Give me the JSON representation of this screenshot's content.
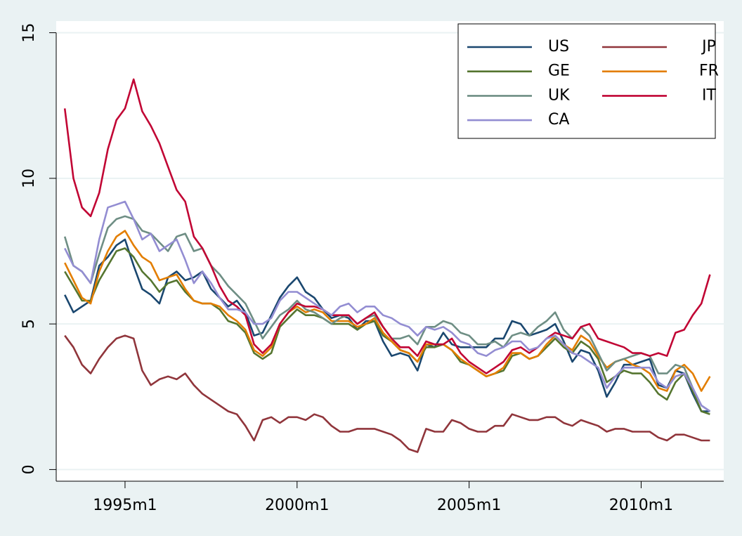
{
  "chart_data": {
    "type": "line",
    "x": [
      1993.25,
      1993.5,
      1993.75,
      1994,
      1994.25,
      1994.5,
      1994.75,
      1995,
      1995.25,
      1995.5,
      1995.75,
      1996,
      1996.25,
      1996.5,
      1996.75,
      1997,
      1997.25,
      1997.5,
      1997.75,
      1998,
      1998.25,
      1998.5,
      1998.75,
      1999,
      1999.25,
      1999.5,
      1999.75,
      2000,
      2000.25,
      2000.5,
      2000.75,
      2001,
      2001.25,
      2001.5,
      2001.75,
      2002,
      2002.25,
      2002.5,
      2002.75,
      2003,
      2003.25,
      2003.5,
      2003.75,
      2004,
      2004.25,
      2004.5,
      2004.75,
      2005,
      2005.25,
      2005.5,
      2005.75,
      2006,
      2006.25,
      2006.5,
      2006.75,
      2007,
      2007.25,
      2007.5,
      2007.75,
      2008,
      2008.25,
      2008.5,
      2008.75,
      2009,
      2009.25,
      2009.5,
      2009.75,
      2010,
      2010.25,
      2010.5,
      2010.75,
      2011,
      2011.25,
      2011.5,
      2011.75,
      2012
    ],
    "xlim": [
      1993,
      2012.4
    ],
    "xticks": [
      {
        "value": 1995,
        "label": "1995m1"
      },
      {
        "value": 2000,
        "label": "2000m1"
      },
      {
        "value": 2005,
        "label": "2005m1"
      },
      {
        "value": 2010,
        "label": "2010m1"
      }
    ],
    "ylim": [
      -0.4,
      15.4
    ],
    "yticks": [
      0,
      5,
      10,
      15
    ],
    "grid": true,
    "legend": "top-right",
    "series": [
      {
        "name": "US",
        "color": "#1a476f",
        "values": [
          6.0,
          5.4,
          5.6,
          5.8,
          7.0,
          7.3,
          7.7,
          7.9,
          7.0,
          6.2,
          6.0,
          5.7,
          6.6,
          6.8,
          6.5,
          6.6,
          6.8,
          6.2,
          5.9,
          5.6,
          5.8,
          5.4,
          4.6,
          4.7,
          5.3,
          5.9,
          6.3,
          6.6,
          6.1,
          5.9,
          5.5,
          5.2,
          5.3,
          5.2,
          4.8,
          5.1,
          5.1,
          4.4,
          3.9,
          4.0,
          3.9,
          3.4,
          4.3,
          4.2,
          4.7,
          4.3,
          4.2,
          4.2,
          4.2,
          4.2,
          4.5,
          4.5,
          5.1,
          5.0,
          4.6,
          4.7,
          4.8,
          5.0,
          4.4,
          3.7,
          4.1,
          4.0,
          3.4,
          2.5,
          3.0,
          3.6,
          3.6,
          3.7,
          3.8,
          2.9,
          2.8,
          3.4,
          3.3,
          2.6,
          2.0,
          2.0
        ]
      },
      {
        "name": "JP",
        "color": "#90353b",
        "values": [
          4.6,
          4.2,
          3.6,
          3.3,
          3.8,
          4.2,
          4.5,
          4.6,
          4.5,
          3.4,
          2.9,
          3.1,
          3.2,
          3.1,
          3.3,
          2.9,
          2.6,
          2.4,
          2.2,
          2.0,
          1.9,
          1.5,
          1.0,
          1.7,
          1.8,
          1.6,
          1.8,
          1.8,
          1.7,
          1.9,
          1.8,
          1.5,
          1.3,
          1.3,
          1.4,
          1.4,
          1.4,
          1.3,
          1.2,
          1.0,
          0.7,
          0.6,
          1.4,
          1.3,
          1.3,
          1.7,
          1.6,
          1.4,
          1.3,
          1.3,
          1.5,
          1.5,
          1.9,
          1.8,
          1.7,
          1.7,
          1.8,
          1.8,
          1.6,
          1.5,
          1.7,
          1.6,
          1.5,
          1.3,
          1.4,
          1.4,
          1.3,
          1.3,
          1.3,
          1.1,
          1.0,
          1.2,
          1.2,
          1.1,
          1.0,
          1.0
        ]
      },
      {
        "name": "GE",
        "color": "#55752f",
        "values": [
          6.8,
          6.3,
          5.8,
          5.8,
          6.5,
          7.0,
          7.5,
          7.6,
          7.3,
          6.8,
          6.5,
          6.1,
          6.4,
          6.5,
          6.1,
          5.8,
          5.7,
          5.7,
          5.5,
          5.1,
          5.0,
          4.7,
          4.0,
          3.8,
          4.0,
          4.9,
          5.2,
          5.5,
          5.3,
          5.3,
          5.2,
          5.0,
          5.0,
          5.0,
          4.8,
          5.0,
          5.1,
          4.6,
          4.4,
          4.1,
          4.0,
          3.7,
          4.2,
          4.2,
          4.3,
          4.1,
          3.7,
          3.6,
          3.4,
          3.2,
          3.3,
          3.4,
          3.9,
          4.0,
          3.8,
          3.9,
          4.2,
          4.5,
          4.2,
          4.0,
          4.4,
          4.2,
          3.8,
          3.0,
          3.2,
          3.4,
          3.3,
          3.3,
          3.0,
          2.6,
          2.4,
          3.0,
          3.3,
          2.7,
          2.0,
          1.9
        ]
      },
      {
        "name": "FR",
        "color": "#e37e00",
        "values": [
          7.1,
          6.5,
          5.9,
          5.7,
          6.8,
          7.5,
          8.0,
          8.2,
          7.7,
          7.3,
          7.1,
          6.5,
          6.6,
          6.7,
          6.2,
          5.8,
          5.7,
          5.7,
          5.6,
          5.3,
          5.1,
          4.8,
          4.1,
          3.9,
          4.2,
          5.0,
          5.4,
          5.6,
          5.4,
          5.5,
          5.4,
          5.1,
          5.1,
          5.1,
          4.9,
          5.0,
          5.2,
          4.7,
          4.4,
          4.1,
          4.0,
          3.7,
          4.3,
          4.3,
          4.3,
          4.1,
          3.8,
          3.6,
          3.4,
          3.2,
          3.3,
          3.5,
          4.0,
          4.0,
          3.8,
          3.9,
          4.3,
          4.6,
          4.3,
          4.1,
          4.6,
          4.4,
          3.9,
          3.5,
          3.7,
          3.8,
          3.6,
          3.5,
          3.3,
          2.8,
          2.7,
          3.4,
          3.6,
          3.3,
          2.7,
          3.2
        ]
      },
      {
        "name": "UK",
        "color": "#6e8e84",
        "values": [
          8.0,
          7.0,
          6.8,
          6.4,
          7.4,
          8.3,
          8.6,
          8.7,
          8.6,
          8.2,
          8.1,
          7.8,
          7.5,
          8.0,
          8.1,
          7.5,
          7.6,
          7.0,
          6.7,
          6.3,
          6.0,
          5.7,
          5.1,
          4.5,
          4.9,
          5.3,
          5.5,
          5.8,
          5.5,
          5.4,
          5.2,
          5.0,
          5.2,
          5.3,
          5.0,
          5.2,
          5.3,
          4.9,
          4.5,
          4.5,
          4.6,
          4.3,
          4.9,
          4.9,
          5.1,
          5.0,
          4.7,
          4.6,
          4.3,
          4.3,
          4.4,
          4.2,
          4.6,
          4.7,
          4.6,
          4.9,
          5.1,
          5.4,
          4.8,
          4.5,
          4.9,
          4.6,
          4.0,
          3.4,
          3.7,
          3.8,
          3.9,
          4.0,
          3.9,
          3.3,
          3.3,
          3.6,
          3.5,
          2.8,
          2.2,
          2.0
        ]
      },
      {
        "name": "IT",
        "color": "#c10534",
        "values": [
          12.4,
          10.0,
          9.0,
          8.7,
          9.5,
          11.0,
          12.0,
          12.4,
          13.4,
          12.3,
          11.8,
          11.2,
          10.4,
          9.6,
          9.2,
          8.0,
          7.6,
          7.0,
          6.3,
          5.8,
          5.6,
          5.3,
          4.3,
          4.0,
          4.3,
          5.0,
          5.4,
          5.7,
          5.6,
          5.6,
          5.5,
          5.3,
          5.3,
          5.3,
          5.0,
          5.2,
          5.4,
          4.9,
          4.5,
          4.2,
          4.2,
          3.9,
          4.4,
          4.3,
          4.3,
          4.5,
          4.0,
          3.7,
          3.5,
          3.3,
          3.5,
          3.7,
          4.1,
          4.2,
          4.0,
          4.2,
          4.5,
          4.7,
          4.6,
          4.5,
          4.9,
          5.0,
          4.5,
          4.4,
          4.3,
          4.2,
          4.0,
          4.0,
          3.9,
          4.0,
          3.9,
          4.7,
          4.8,
          5.3,
          5.7,
          6.7
        ]
      },
      {
        "name": "CA",
        "color": "#938dd2",
        "values": [
          7.6,
          7.0,
          6.8,
          6.4,
          7.9,
          9.0,
          9.1,
          9.2,
          8.6,
          7.9,
          8.1,
          7.5,
          7.7,
          7.9,
          7.2,
          6.4,
          6.8,
          6.4,
          5.9,
          5.5,
          5.5,
          5.4,
          5.0,
          5.0,
          5.2,
          5.8,
          6.1,
          6.1,
          5.9,
          5.7,
          5.5,
          5.3,
          5.6,
          5.7,
          5.4,
          5.6,
          5.6,
          5.3,
          5.2,
          5.0,
          4.9,
          4.6,
          4.9,
          4.8,
          4.9,
          4.7,
          4.4,
          4.3,
          4.0,
          3.9,
          4.1,
          4.2,
          4.4,
          4.4,
          4.1,
          4.2,
          4.5,
          4.6,
          4.3,
          4.0,
          3.9,
          3.7,
          3.5,
          2.8,
          3.2,
          3.5,
          3.5,
          3.5,
          3.5,
          3.0,
          2.8,
          3.2,
          3.3,
          2.8,
          2.2,
          2.0
        ]
      }
    ]
  }
}
